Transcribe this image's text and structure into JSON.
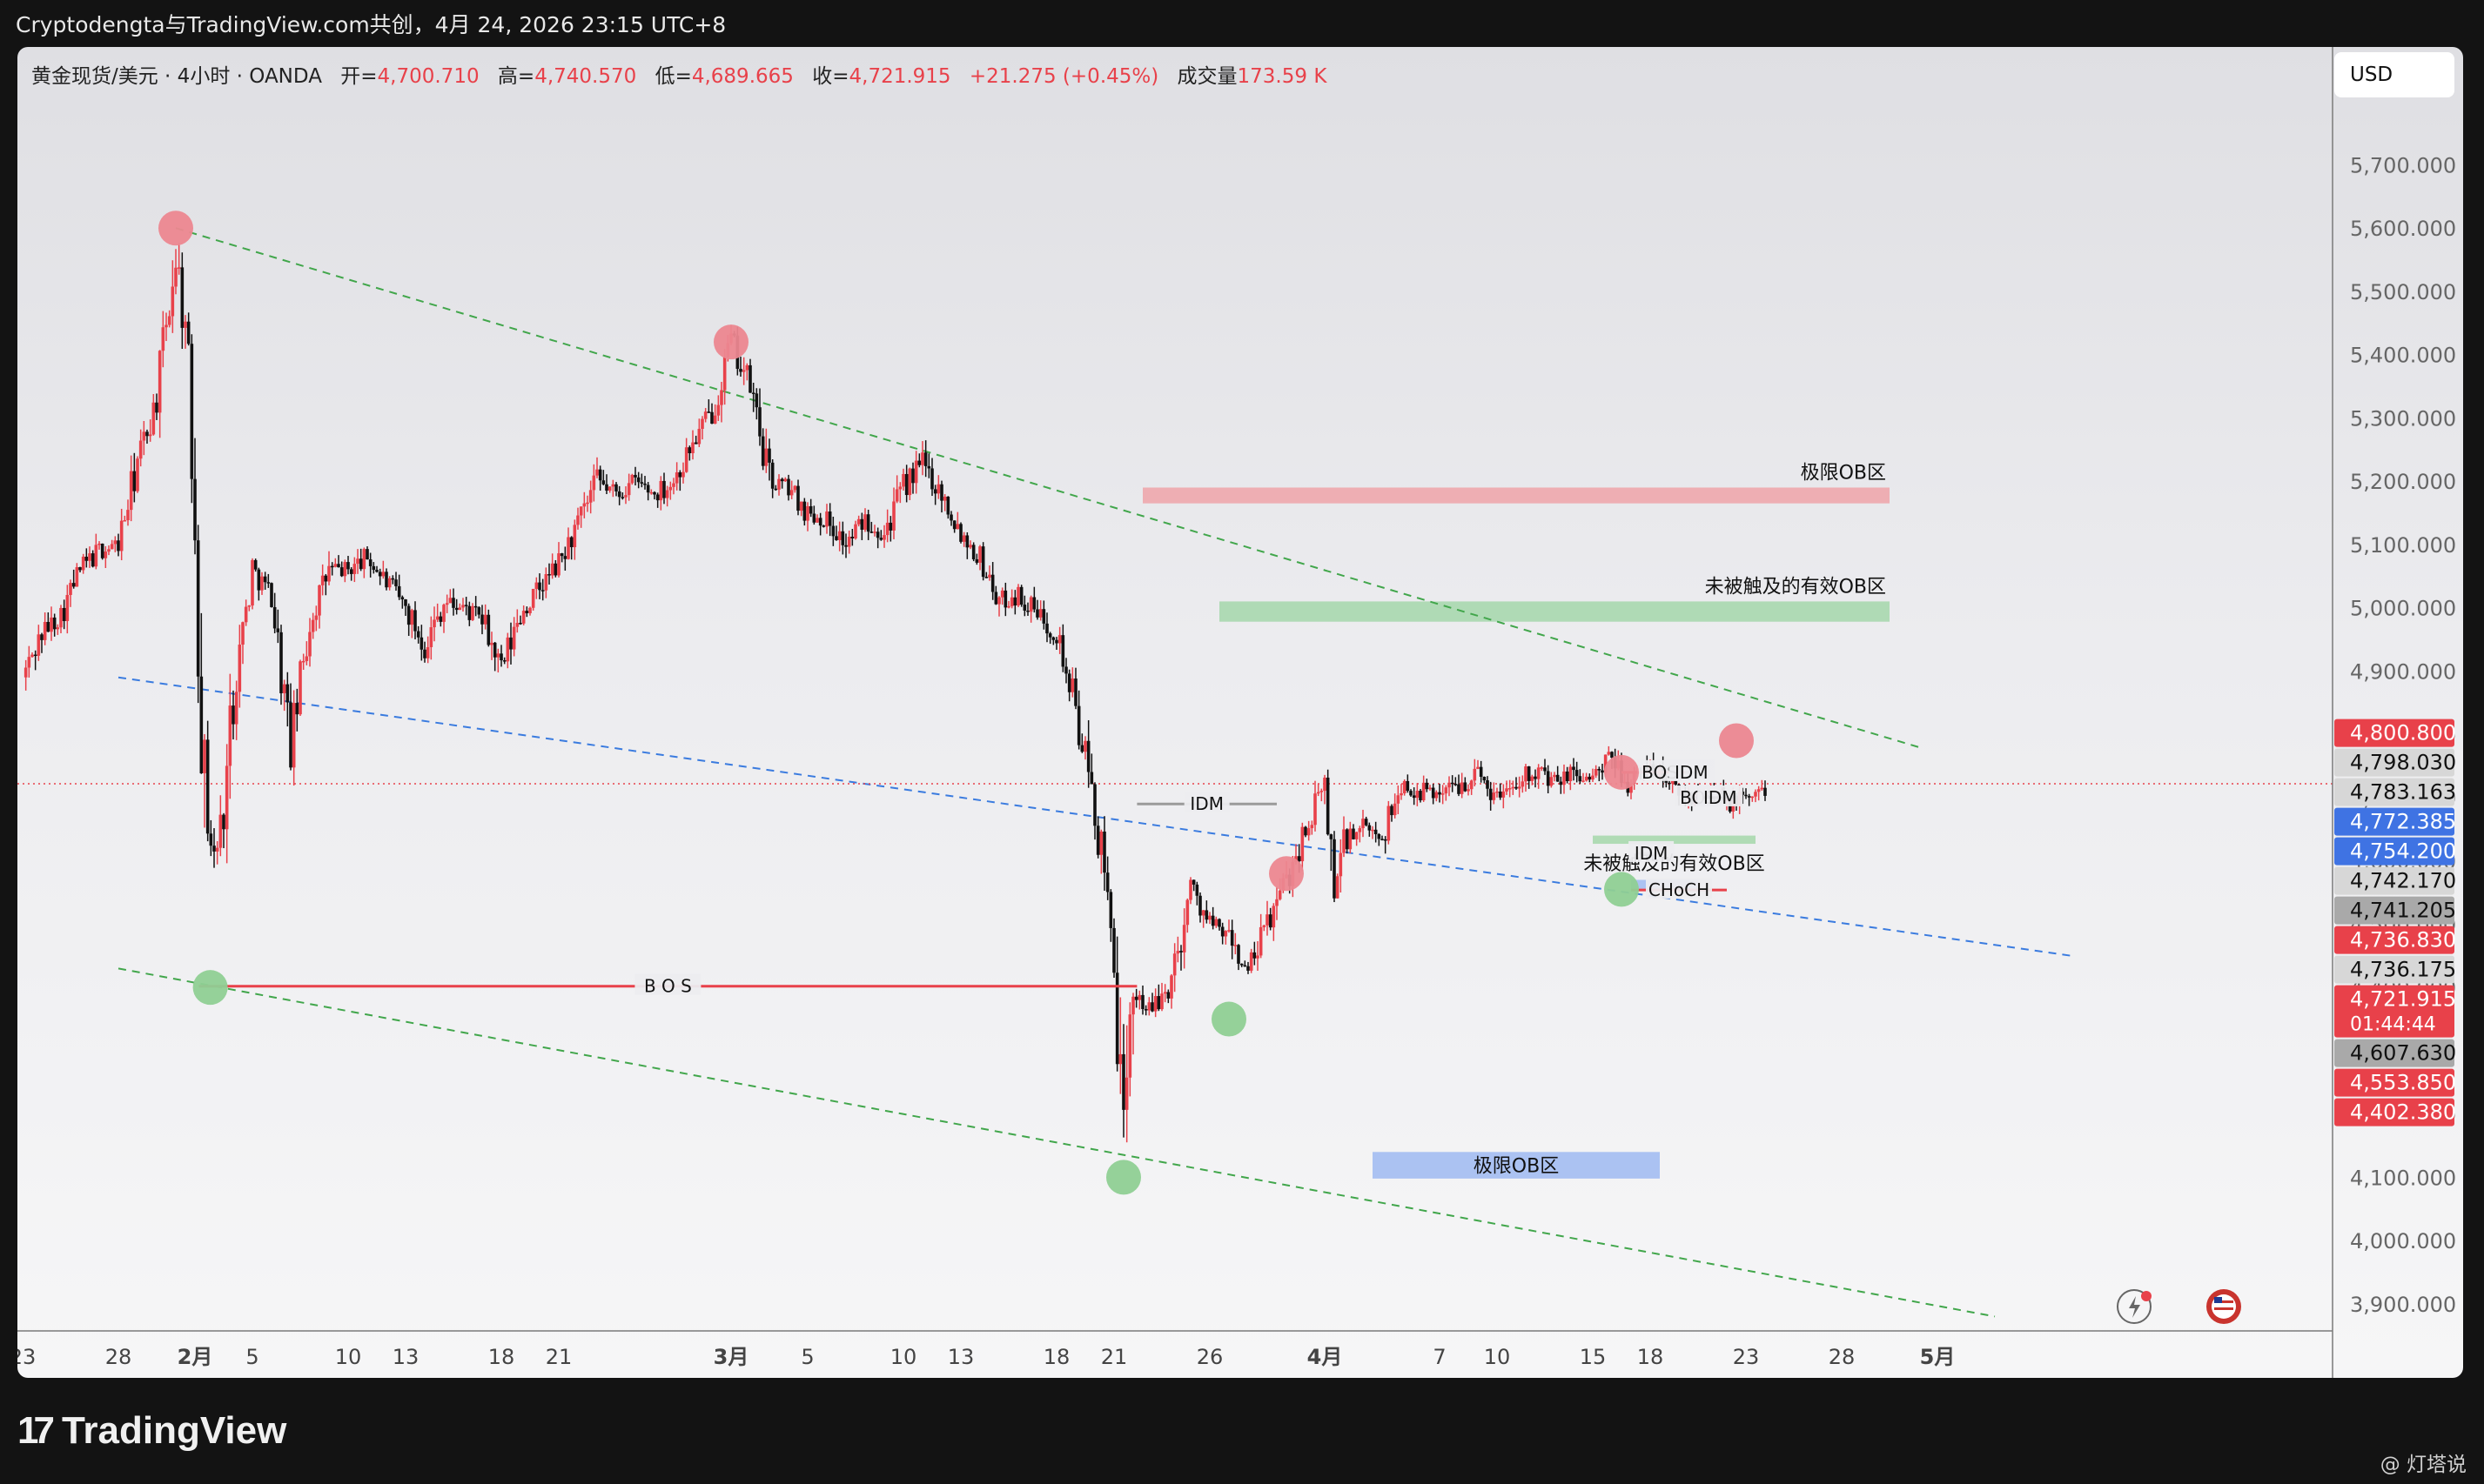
{
  "header": {
    "title": "Cryptodengta与TradingView.com共创，4月 24, 2026 23:15 UTC+8"
  },
  "legend": {
    "symbol": "黄金现货/美元 · 4小时 · OANDA",
    "open_label": "开=",
    "open": "4,700.710",
    "high_label": "高=",
    "high": "4,740.570",
    "low_label": "低=",
    "low": "4,689.665",
    "close_label": "收=",
    "close": "4,721.915",
    "change": "+21.275 (+0.45%)",
    "volume_label": "成交量",
    "volume": "173.59 K"
  },
  "currency_button": "USD",
  "footer": {
    "brand": "TradingView",
    "brand_mark": "17",
    "watermark": "@ 灯塔说"
  },
  "colors": {
    "up": "#e8414a",
    "down": "#111111",
    "extreme_ob": "#eea7ad",
    "valid_ob": "#a9d8ae",
    "blue_ob": "#a3bcf2",
    "swing_high": "#ec8790",
    "swing_low": "#8fcf93",
    "green_dash": "#41a64b",
    "blue_dash": "#3a7bdf"
  },
  "chart_data": {
    "type": "candlestick",
    "symbol": "XAUUSD",
    "timeframe": "4h",
    "ylim": [
      3860,
      5790
    ],
    "y_ticks": [
      "5,700.000",
      "5,600.000",
      "5,500.000",
      "5,400.000",
      "5,300.000",
      "5,200.000",
      "5,100.000",
      "5,000.000",
      "4,900.000",
      "4,800.000",
      "4,700.000",
      "4,600.000",
      "4,500.000",
      "4,400.000",
      "4,300.000",
      "4,200.000",
      "4,100.000",
      "4,000.000",
      "3,900.000"
    ],
    "y_tick_values": [
      5700,
      5600,
      5500,
      5400,
      5300,
      5200,
      5100,
      5000,
      4900,
      4800,
      4700,
      4600,
      4500,
      4400,
      4300,
      4200,
      4100,
      4000,
      3900
    ],
    "x_ticks": [
      {
        "label": "23",
        "day": 0,
        "bold": false
      },
      {
        "label": "28",
        "day": 5,
        "bold": false
      },
      {
        "label": "2月",
        "day": 9,
        "bold": true
      },
      {
        "label": "5",
        "day": 12,
        "bold": false
      },
      {
        "label": "10",
        "day": 17,
        "bold": false
      },
      {
        "label": "13",
        "day": 20,
        "bold": false
      },
      {
        "label": "18",
        "day": 25,
        "bold": false
      },
      {
        "label": "21",
        "day": 28,
        "bold": false
      },
      {
        "label": "3月",
        "day": 37,
        "bold": true
      },
      {
        "label": "5",
        "day": 41,
        "bold": false
      },
      {
        "label": "10",
        "day": 46,
        "bold": false
      },
      {
        "label": "13",
        "day": 49,
        "bold": false
      },
      {
        "label": "18",
        "day": 54,
        "bold": false
      },
      {
        "label": "21",
        "day": 57,
        "bold": false
      },
      {
        "label": "26",
        "day": 62,
        "bold": false
      },
      {
        "label": "4月",
        "day": 68,
        "bold": true
      },
      {
        "label": "7",
        "day": 74,
        "bold": false
      },
      {
        "label": "10",
        "day": 77,
        "bold": false
      },
      {
        "label": "15",
        "day": 82,
        "bold": false
      },
      {
        "label": "18",
        "day": 85,
        "bold": false
      },
      {
        "label": "23",
        "day": 90,
        "bold": false
      },
      {
        "label": "28",
        "day": 95,
        "bold": false
      },
      {
        "label": "5月",
        "day": 100,
        "bold": true
      }
    ],
    "price_path": [
      [
        0,
        4890
      ],
      [
        1,
        4960
      ],
      [
        2,
        4990
      ],
      [
        3,
        5060
      ],
      [
        4,
        5090
      ],
      [
        5,
        5100
      ],
      [
        6,
        5230
      ],
      [
        7,
        5330
      ],
      [
        8,
        5560
      ],
      [
        8.5,
        5440
      ],
      [
        9,
        5150
      ],
      [
        9.5,
        4700
      ],
      [
        10,
        4600
      ],
      [
        10.5,
        4680
      ],
      [
        11,
        4870
      ],
      [
        12,
        5060
      ],
      [
        13,
        5020
      ],
      [
        14,
        4780
      ],
      [
        15,
        4980
      ],
      [
        16,
        5060
      ],
      [
        17,
        5060
      ],
      [
        18,
        5080
      ],
      [
        19,
        5040
      ],
      [
        20,
        5000
      ],
      [
        21,
        4940
      ],
      [
        22,
        5010
      ],
      [
        23,
        5000
      ],
      [
        24,
        4980
      ],
      [
        25,
        4900
      ],
      [
        26,
        4990
      ],
      [
        27,
        5030
      ],
      [
        28,
        5070
      ],
      [
        29,
        5130
      ],
      [
        30,
        5200
      ],
      [
        31,
        5180
      ],
      [
        32,
        5200
      ],
      [
        33,
        5180
      ],
      [
        34,
        5200
      ],
      [
        35,
        5260
      ],
      [
        36,
        5310
      ],
      [
        37,
        5420
      ],
      [
        38,
        5350
      ],
      [
        39,
        5200
      ],
      [
        40,
        5190
      ],
      [
        41,
        5150
      ],
      [
        42,
        5140
      ],
      [
        43,
        5100
      ],
      [
        44,
        5140
      ],
      [
        45,
        5120
      ],
      [
        46,
        5190
      ],
      [
        47,
        5230
      ],
      [
        48,
        5180
      ],
      [
        49,
        5120
      ],
      [
        50,
        5080
      ],
      [
        51,
        5010
      ],
      [
        52,
        5020
      ],
      [
        53,
        4990
      ],
      [
        54,
        4960
      ],
      [
        55,
        4840
      ],
      [
        56,
        4680
      ],
      [
        57,
        4460
      ],
      [
        57.5,
        4110
      ],
      [
        58,
        4400
      ],
      [
        59,
        4360
      ],
      [
        60,
        4410
      ],
      [
        61,
        4560
      ],
      [
        62,
        4500
      ],
      [
        63,
        4480
      ],
      [
        64,
        4420
      ],
      [
        65,
        4500
      ],
      [
        66,
        4570
      ],
      [
        67,
        4650
      ],
      [
        68,
        4720
      ],
      [
        68.5,
        4560
      ],
      [
        69,
        4630
      ],
      [
        70,
        4650
      ],
      [
        71,
        4640
      ],
      [
        72,
        4720
      ],
      [
        73,
        4710
      ],
      [
        74,
        4710
      ],
      [
        75,
        4720
      ],
      [
        76,
        4740
      ],
      [
        77,
        4700
      ],
      [
        78,
        4730
      ],
      [
        79,
        4745
      ],
      [
        80,
        4720
      ],
      [
        81,
        4740
      ],
      [
        82,
        4730
      ],
      [
        83,
        4760
      ],
      [
        84,
        4720
      ],
      [
        85,
        4755
      ],
      [
        86,
        4720
      ],
      [
        87,
        4700
      ],
      [
        88,
        4720
      ],
      [
        89,
        4690
      ],
      [
        90,
        4700
      ],
      [
        91,
        4710
      ]
    ],
    "seed": 42,
    "last_close": 4721.915,
    "price_labels": [
      {
        "value": 4800.8,
        "text": "4,800.800",
        "bg": "#e8414a",
        "fg": "#ffffff"
      },
      {
        "value": 4798.03,
        "text": "4,798.030",
        "bg": "#d7d7d7",
        "fg": "#111111"
      },
      {
        "value": 4783.163,
        "text": "4,783.163",
        "bg": "#d7d7d7",
        "fg": "#111111"
      },
      {
        "value": 4772.385,
        "text": "4,772.385",
        "bg": "#3f73e3",
        "fg": "#ffffff"
      },
      {
        "value": 4754.2,
        "text": "4,754.200",
        "bg": "#3f73e3",
        "fg": "#ffffff"
      },
      {
        "value": 4742.17,
        "text": "4,742.170",
        "bg": "#d7d7d7",
        "fg": "#111111"
      },
      {
        "value": 4741.205,
        "text": "4,741.205",
        "bg": "#a9a9a9",
        "fg": "#111111"
      },
      {
        "value": 4736.83,
        "text": "4,736.830",
        "bg": "#e8414a",
        "fg": "#ffffff"
      },
      {
        "value": 4736.175,
        "text": "4,736.175",
        "bg": "#d7d7d7",
        "fg": "#111111"
      },
      {
        "value": 4721.915,
        "text": "4,721.915",
        "bg": "#e8414a",
        "fg": "#ffffff"
      },
      {
        "value": 4607.63,
        "text": "4,607.630",
        "bg": "#a9a9a9",
        "fg": "#111111"
      },
      {
        "value": 4553.85,
        "text": "4,553.850",
        "bg": "#e8414a",
        "fg": "#ffffff"
      },
      {
        "value": 4402.38,
        "text": "4,402.380",
        "bg": "#e8414a",
        "fg": "#ffffff"
      }
    ],
    "countdown": "01:44:44",
    "zones": [
      {
        "label": "极限OB区",
        "x0": 58.5,
        "x1": 97.5,
        "y0": 5165,
        "y1": 5190,
        "color": "#eea7ad",
        "label_pos": "above-right"
      },
      {
        "label": "未被触及的有效OB区",
        "x0": 62.5,
        "x1": 97.5,
        "y0": 4978,
        "y1": 5010,
        "color": "#a9d8ae",
        "label_pos": "above-right"
      },
      {
        "label": "极限OB区",
        "x0": 70.5,
        "x1": 85.5,
        "y0": 4098,
        "y1": 4140,
        "color": "#a3bcf2",
        "label_pos": "center"
      },
      {
        "label": "未被触及的有效OB区",
        "x0": 82,
        "x1": 90.5,
        "y0": 4627,
        "y1": 4640,
        "color": "#a9d8ae",
        "label_pos": "below-center"
      },
      {
        "label": "",
        "x0": 84,
        "x1": 87.5,
        "y0": 4556,
        "y1": 4570,
        "color": "#a3bcf2",
        "label_pos": "none"
      }
    ],
    "structure_lines": [
      {
        "label": "B O S",
        "x0": 9.2,
        "x1": 58.2,
        "y": 4402,
        "color": "#e8414a"
      },
      {
        "label": "IDM",
        "x0": 58.2,
        "x1": 65.5,
        "y": 4690,
        "color": "#9a9a9a"
      },
      {
        "label": "BOS",
        "x0": 83.5,
        "x1": 87.5,
        "y": 4740,
        "color": "#e8414a"
      },
      {
        "label": "CHoCH",
        "x0": 84,
        "x1": 89,
        "y": 4554,
        "color": "#e8414a"
      },
      {
        "label": "IDM",
        "x0": 84.3,
        "x1": 85.8,
        "y": 4612,
        "color": "#9a9a9a"
      },
      {
        "label": "IDM",
        "x0": 86.8,
        "x1": 87.5,
        "y": 4740,
        "color": "#9a9a9a"
      },
      {
        "label": "BOS",
        "x0": 87,
        "x1": 88,
        "y": 4700,
        "color": "#111111"
      },
      {
        "label": "IDM",
        "x0": 87.8,
        "x1": 89.5,
        "y": 4700,
        "color": "#111111"
      }
    ],
    "swing_markers": [
      {
        "day": 8,
        "price": 5600,
        "type": "high"
      },
      {
        "day": 37,
        "price": 5420,
        "type": "high"
      },
      {
        "day": 66,
        "price": 4580,
        "type": "high"
      },
      {
        "day": 83.5,
        "price": 4740,
        "type": "high"
      },
      {
        "day": 89.5,
        "price": 4790,
        "type": "high"
      },
      {
        "day": 9.8,
        "price": 4400,
        "type": "low"
      },
      {
        "day": 57.5,
        "price": 4100,
        "type": "low"
      },
      {
        "day": 63,
        "price": 4350,
        "type": "low"
      },
      {
        "day": 83.5,
        "price": 4555,
        "type": "low"
      }
    ],
    "trend_lines": [
      {
        "color": "#41a64b",
        "from": [
          8,
          5600
        ],
        "to": [
          99,
          4780
        ]
      },
      {
        "color": "#3a7bdf",
        "from": [
          5,
          4890
        ],
        "to": [
          107,
          4450
        ]
      },
      {
        "color": "#41a64b",
        "from": [
          5,
          4430
        ],
        "to": [
          103,
          3880
        ]
      }
    ]
  }
}
